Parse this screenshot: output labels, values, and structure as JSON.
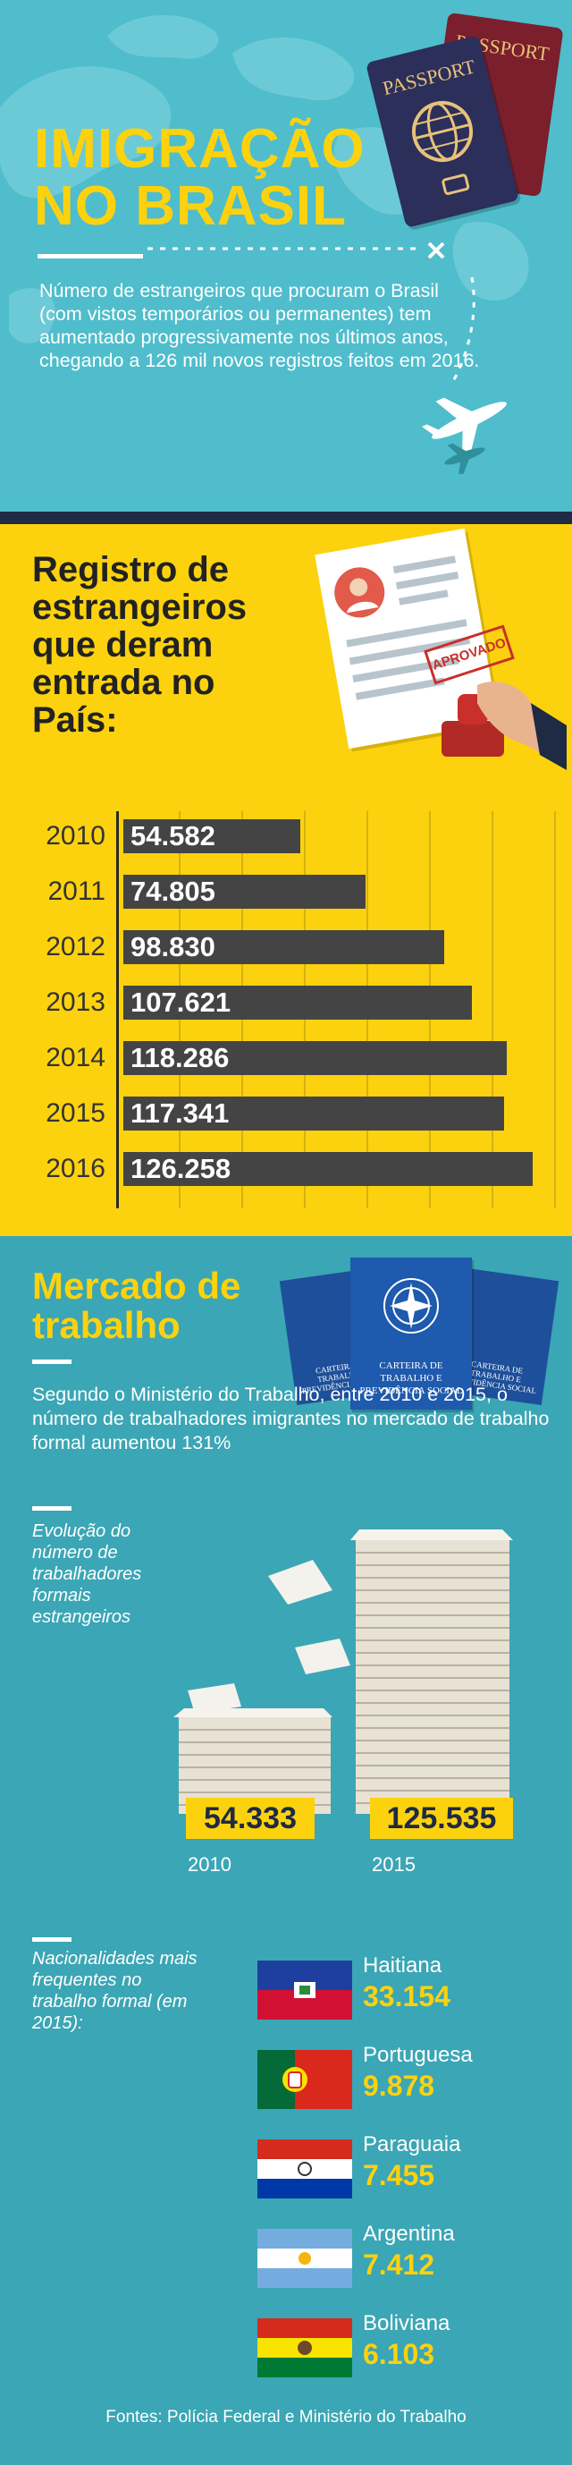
{
  "header": {
    "title_line1": "IMIGRAÇÃO",
    "title_line2": "NO BRASIL",
    "intro_text": "Número de estrangeiros que procuram o Brasil (com vistos temporários ou permanentes) tem aumentado progressivamente nos últimos anos, chegando a 126 mil novos registros feitos em 2016.",
    "passport_label": "PASSPORT"
  },
  "registro": {
    "title": "Registro de estrangeiros que deram entrada no País:",
    "stamp_label": "APROVADO"
  },
  "mercado": {
    "title": "Mercado de trabalho",
    "text": "Segundo o Ministério do Trabalho, entre 2010 e 2015, o número de trabalhadores imigrantes no mercado de trabalho formal aumentou 131%",
    "evolucao_caption": "Evolução do número de trabalhadores formais estrangeiros",
    "card_label": "CARTEIRA DE TRABALHO E PREVIDÊNCIA SOCIAL",
    "nacionalidades_caption": "Nacionalidades mais frequentes no trabalho formal (em 2015):"
  },
  "footer": {
    "sources": "Fontes: Polícia Federal e Ministério do Trabalho"
  },
  "colors": {
    "teal_light": "#4fbdcc",
    "teal_dark": "#3ba6b5",
    "yellow": "#fcd20e",
    "navy": "#1f2a44",
    "bar": "#444444"
  },
  "chart_data": [
    {
      "type": "bar",
      "orientation": "horizontal",
      "title": "Registro de estrangeiros que deram entrada no País:",
      "categories": [
        "2010",
        "2011",
        "2012",
        "2013",
        "2014",
        "2015",
        "2016"
      ],
      "values": [
        54582,
        74805,
        98830,
        107621,
        118286,
        117341,
        126258
      ],
      "labels": [
        "54.582",
        "74.805",
        "98.830",
        "107.621",
        "118.286",
        "117.341",
        "126.258"
      ]
    },
    {
      "type": "bar",
      "title": "Evolução do número de trabalhadores formais estrangeiros",
      "categories": [
        "2010",
        "2015"
      ],
      "values": [
        54333,
        125535
      ],
      "labels": [
        "54.333",
        "125.535"
      ]
    },
    {
      "type": "table",
      "title": "Nacionalidades mais frequentes no trabalho formal (em 2015):",
      "rows": [
        {
          "name": "Haitiana",
          "value": 33154,
          "label": "33.154",
          "flag": "haiti-flag"
        },
        {
          "name": "Portuguesa",
          "value": 9878,
          "label": "9.878",
          "flag": "portugal-flag"
        },
        {
          "name": "Paraguaia",
          "value": 7455,
          "label": "7.455",
          "flag": "paraguay-flag"
        },
        {
          "name": "Argentina",
          "value": 7412,
          "label": "7.412",
          "flag": "argentina-flag"
        },
        {
          "name": "Boliviana",
          "value": 6103,
          "label": "6.103",
          "flag": "bolivia-flag"
        }
      ]
    }
  ]
}
